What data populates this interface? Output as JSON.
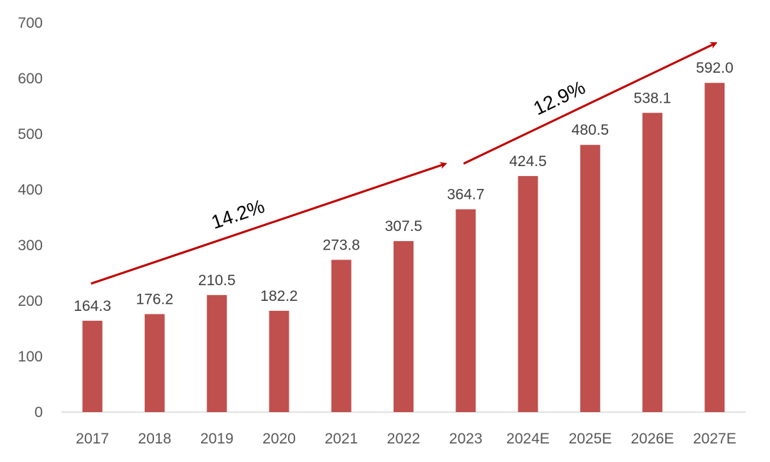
{
  "chart_data": {
    "type": "bar",
    "categories": [
      "2017",
      "2018",
      "2019",
      "2020",
      "2021",
      "2022",
      "2023",
      "2024E",
      "2025E",
      "2026E",
      "2027E"
    ],
    "values": [
      164.3,
      176.2,
      210.5,
      182.2,
      273.8,
      307.5,
      364.7,
      424.5,
      480.5,
      538.1,
      592.0
    ],
    "data_labels": [
      "164.3",
      "176.2",
      "210.5",
      "182.2",
      "273.8",
      "307.5",
      "364.7",
      "424.5",
      "480.5",
      "538.1",
      "592.0"
    ],
    "yticks": [
      "0",
      "100",
      "200",
      "300",
      "400",
      "500",
      "600",
      "700"
    ],
    "ylim": [
      0,
      700
    ],
    "grid": false,
    "legend": "none",
    "bar_color": "#c0504d",
    "annotations": [
      {
        "label": "14.2%",
        "from_category": "2017",
        "to_category": "2023",
        "color": "#c00000"
      },
      {
        "label": "12.9%",
        "from_category": "2023",
        "to_category": "2027E",
        "color": "#c00000"
      }
    ]
  }
}
